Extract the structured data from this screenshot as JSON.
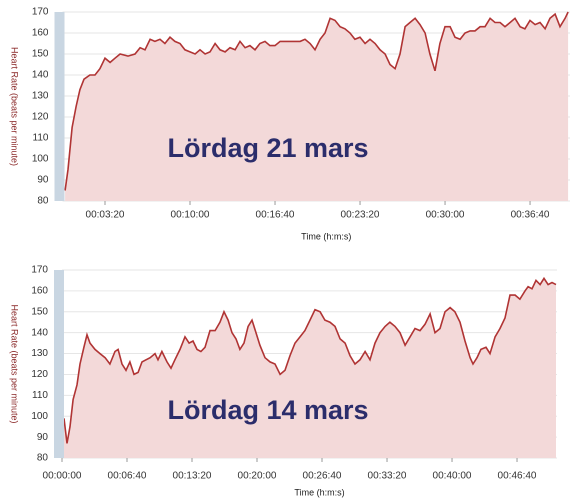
{
  "chart_data": [
    {
      "type": "area",
      "annotation": "Lördag 21 mars",
      "y_label": "Heart Rate (beats per minute)",
      "x_label": "Time (h:m:s)",
      "color": "#b03434",
      "fill_color": "#f3d9d9",
      "grid": true,
      "xlim": [
        0,
        2388
      ],
      "ylim": [
        80,
        170
      ],
      "xticks": [
        {
          "value": 200,
          "label": "00:03:20"
        },
        {
          "value": 600,
          "label": "00:10:00"
        },
        {
          "value": 1000,
          "label": "00:16:40"
        },
        {
          "value": 1400,
          "label": "00:23:20"
        },
        {
          "value": 1800,
          "label": "00:30:00"
        },
        {
          "value": 2200,
          "label": "00:36:40"
        }
      ],
      "yticks": [
        80,
        90,
        100,
        110,
        120,
        130,
        140,
        150,
        160,
        170
      ],
      "x": [
        12,
        26,
        45,
        64,
        82,
        101,
        129,
        153,
        176,
        200,
        224,
        247,
        271,
        308,
        341,
        365,
        388,
        412,
        435,
        459,
        482,
        506,
        529,
        553,
        576,
        600,
        624,
        647,
        671,
        694,
        718,
        741,
        765,
        788,
        812,
        835,
        859,
        882,
        906,
        929,
        953,
        976,
        1000,
        1024,
        1071,
        1118,
        1141,
        1165,
        1188,
        1212,
        1235,
        1259,
        1282,
        1306,
        1329,
        1353,
        1376,
        1400,
        1424,
        1447,
        1471,
        1494,
        1518,
        1541,
        1565,
        1588,
        1612,
        1635,
        1659,
        1682,
        1706,
        1729,
        1753,
        1776,
        1800,
        1824,
        1847,
        1871,
        1894,
        1918,
        1941,
        1965,
        1988,
        2012,
        2035,
        2059,
        2082,
        2106,
        2129,
        2153,
        2176,
        2200,
        2224,
        2247,
        2271,
        2294,
        2318,
        2341,
        2365,
        2379
      ],
      "values": [
        85,
        95,
        115,
        125,
        133,
        138,
        140,
        140,
        143,
        148,
        146,
        148,
        150,
        149,
        150,
        153,
        152,
        157,
        156,
        157,
        155,
        158,
        156,
        155,
        152,
        151,
        150,
        152,
        150,
        151,
        155,
        152,
        151,
        153,
        152,
        156,
        153,
        154,
        152,
        155,
        156,
        154,
        154,
        156,
        156,
        156,
        157,
        155,
        152,
        157,
        160,
        167,
        166,
        163,
        162,
        160,
        157,
        158,
        155,
        157,
        155,
        152,
        150,
        145,
        143,
        150,
        163,
        165,
        167,
        164,
        160,
        150,
        142,
        155,
        163,
        163,
        158,
        157,
        160,
        161,
        161,
        163,
        163,
        167,
        165,
        165,
        163,
        165,
        167,
        163,
        162,
        166,
        164,
        165,
        162,
        167,
        169,
        163,
        167,
        170
      ]
    },
    {
      "type": "area",
      "annotation": "Lördag 14 mars",
      "y_label": "Heart Rate (beats per minute)",
      "x_label": "Time (h:m:s)",
      "color": "#b03434",
      "fill_color": "#f3d9d9",
      "grid": true,
      "xlim": [
        0,
        3046
      ],
      "ylim": [
        80,
        170
      ],
      "xticks": [
        {
          "value": 0,
          "label": "00:00:00"
        },
        {
          "value": 400,
          "label": "00:06:40"
        },
        {
          "value": 800,
          "label": "00:13:20"
        },
        {
          "value": 1200,
          "label": "00:20:00"
        },
        {
          "value": 1600,
          "label": "00:26:40"
        },
        {
          "value": 2000,
          "label": "00:33:20"
        },
        {
          "value": 2400,
          "label": "00:40:00"
        },
        {
          "value": 2800,
          "label": "00:46:40"
        }
      ],
      "yticks": [
        80,
        90,
        100,
        110,
        120,
        130,
        140,
        150,
        160,
        170
      ],
      "x": [
        12,
        31,
        49,
        68,
        92,
        111,
        135,
        154,
        172,
        203,
        234,
        265,
        295,
        326,
        345,
        369,
        394,
        418,
        443,
        468,
        492,
        517,
        542,
        572,
        591,
        615,
        646,
        671,
        695,
        726,
        757,
        782,
        806,
        831,
        855,
        880,
        911,
        942,
        972,
        997,
        1022,
        1046,
        1071,
        1095,
        1120,
        1145,
        1169,
        1194,
        1218,
        1249,
        1280,
        1311,
        1342,
        1372,
        1403,
        1434,
        1465,
        1495,
        1526,
        1557,
        1588,
        1618,
        1649,
        1680,
        1711,
        1742,
        1772,
        1803,
        1834,
        1865,
        1895,
        1926,
        1957,
        1988,
        2018,
        2049,
        2080,
        2111,
        2142,
        2172,
        2203,
        2234,
        2265,
        2295,
        2326,
        2357,
        2388,
        2418,
        2449,
        2480,
        2511,
        2529,
        2554,
        2578,
        2609,
        2634,
        2665,
        2695,
        2726,
        2757,
        2788,
        2818,
        2849,
        2868,
        2892,
        2917,
        2942,
        2966,
        2991,
        3015,
        3040
      ],
      "values": [
        99,
        87,
        95,
        108,
        115,
        125,
        133,
        139,
        135,
        132,
        130,
        128,
        125,
        131,
        132,
        125,
        122,
        126,
        120,
        121,
        126,
        127,
        128,
        130,
        127,
        131,
        126,
        123,
        127,
        132,
        138,
        135,
        136,
        132,
        131,
        133,
        141,
        141,
        145,
        150,
        146,
        140,
        137,
        132,
        135,
        143,
        146,
        140,
        134,
        128,
        126,
        125,
        120,
        122,
        129,
        135,
        138,
        141,
        146,
        151,
        150,
        146,
        145,
        143,
        137,
        135,
        129,
        125,
        127,
        131,
        127,
        135,
        140,
        143,
        145,
        143,
        140,
        134,
        138,
        142,
        141,
        144,
        149,
        140,
        142,
        150,
        152,
        150,
        145,
        136,
        128,
        125,
        128,
        132,
        133,
        130,
        138,
        142,
        147,
        158,
        158,
        156,
        160,
        162,
        161,
        165,
        163,
        166,
        163,
        164,
        163
      ]
    }
  ]
}
